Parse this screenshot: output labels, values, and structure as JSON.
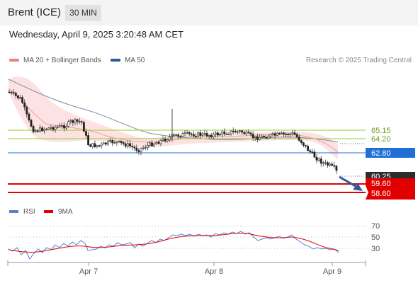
{
  "header": {
    "title": "Brent (ICE)",
    "interval": "30 MIN"
  },
  "timestamp": "Wednesday, April 9, 2025 3:20:48 AM CET",
  "legend": {
    "ma20": {
      "label": "MA 20 + Bollinger Bands",
      "color": "#f08080"
    },
    "ma50": {
      "label": "MA 50",
      "color": "#2b5aa0"
    },
    "copyright": "Research © 2025 Trading Central"
  },
  "levels": [
    {
      "label": "65.15",
      "value": 65.15,
      "kind": "resistance",
      "color": "#9acd32"
    },
    {
      "label": "64.20",
      "value": 64.2,
      "kind": "resistance",
      "color": "#9acd32"
    },
    {
      "label": "62.80",
      "value": 62.8,
      "kind": "pivot",
      "color": "#1f6fd6"
    },
    {
      "label": "60.25",
      "value": 60.25,
      "kind": "last",
      "color": "#333333"
    },
    {
      "label": "59.60",
      "value": 59.6,
      "kind": "support",
      "color": "#e00000"
    },
    {
      "label": "58.60",
      "value": 58.6,
      "kind": "support",
      "color": "#e00000"
    }
  ],
  "rsi_panel": {
    "legend": [
      {
        "label": "RSI",
        "color": "#5b7fd6"
      },
      {
        "label": "9MA",
        "color": "#e00000"
      }
    ],
    "axis_labels": [
      "70",
      "50",
      "30"
    ]
  },
  "x_axis": {
    "labels": [
      "Apr 7",
      "Apr 8",
      "Apr 9"
    ]
  }
}
